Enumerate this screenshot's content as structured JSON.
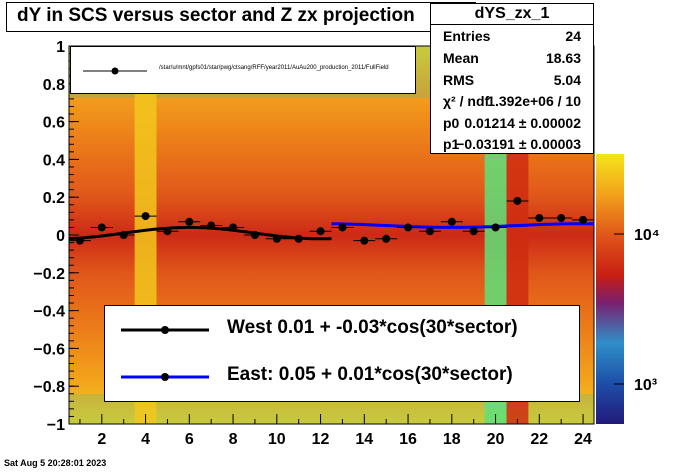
{
  "title": "dY in SCS versus sector and Z zx projection",
  "stats": {
    "name": "dYS_zx_1",
    "rows": [
      {
        "label": "Entries",
        "value": "24"
      },
      {
        "label": "Mean",
        "value": "18.63"
      },
      {
        "label": "RMS",
        "value": "5.04"
      },
      {
        "label": "χ² / ndf",
        "value": "1.392e+06 / 10"
      },
      {
        "label": "p0",
        "value": "0.01214 ± 0.00002"
      },
      {
        "label": "p1",
        "value": "−0.03191 ± 0.00003"
      }
    ]
  },
  "legend_top": {
    "label": "/star/u/mnt/gpfs01/star/pwg/ctsang/RFF/year2011/AuAu200_production_2011/FullField"
  },
  "legend_bottom": {
    "west": "West  0.01 + -0.03*cos(30*sector)",
    "east": "East:  0.05 +  0.01*cos(30*sector)"
  },
  "date": "Sat Aug  5 20:28:01 2023",
  "colorbar": {
    "ticks": [
      "10⁴",
      "10³"
    ]
  },
  "chart_data": {
    "type": "scatter",
    "title": "dY in SCS versus sector and Z zx projection",
    "xlabel": "",
    "ylabel": "",
    "xlim": [
      0.5,
      24.5
    ],
    "ylim": [
      -1,
      1
    ],
    "xticks": [
      2,
      4,
      6,
      8,
      10,
      12,
      14,
      16,
      18,
      20,
      22,
      24
    ],
    "yticks": [
      -1,
      -0.8,
      -0.6,
      -0.4,
      -0.2,
      0,
      0.2,
      0.4,
      0.6,
      0.8,
      1
    ],
    "points": {
      "x": [
        1,
        2,
        3,
        4,
        5,
        6,
        7,
        8,
        9,
        10,
        11,
        12,
        13,
        14,
        15,
        16,
        17,
        18,
        19,
        20,
        21,
        22,
        23,
        24
      ],
      "y": [
        -0.03,
        0.04,
        0.0,
        0.1,
        0.02,
        0.07,
        0.05,
        0.04,
        0.0,
        -0.02,
        -0.02,
        0.02,
        0.04,
        -0.03,
        -0.02,
        0.04,
        0.02,
        0.07,
        0.02,
        0.04,
        0.18,
        0.09,
        0.09,
        0.08
      ],
      "xerr": 0.5
    },
    "fits": [
      {
        "name": "West",
        "p0": 0.01,
        "p1": -0.03,
        "xrange": [
          0.5,
          12.5
        ],
        "color": "#000000"
      },
      {
        "name": "East",
        "p0": 0.05,
        "p1": 0.01,
        "xrange": [
          12.5,
          24.5
        ],
        "color": "#0000ff"
      }
    ],
    "heatmap_columns": [
      {
        "x": 4,
        "color": "#f2c71d"
      },
      {
        "x": 20,
        "color": "#5ee07a"
      },
      {
        "x": 21,
        "color": "#cf2c11"
      }
    ],
    "z_scale": "log",
    "colorbar_ticks": [
      1000,
      10000
    ]
  }
}
